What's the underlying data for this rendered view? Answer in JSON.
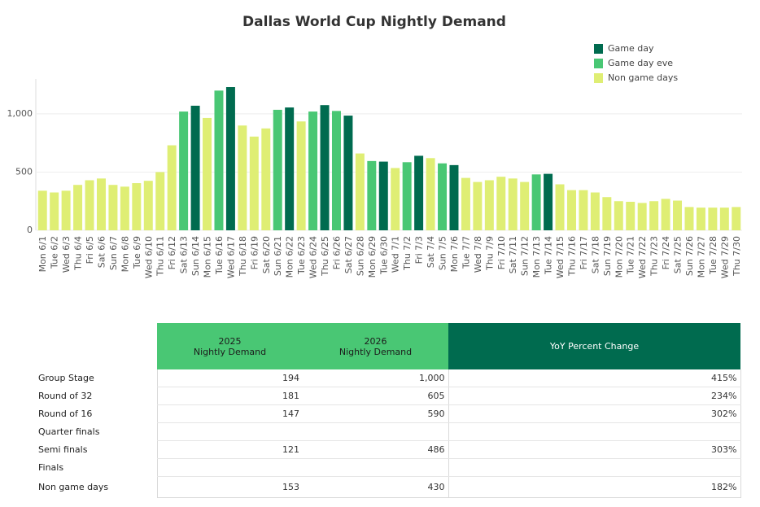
{
  "chart_data": {
    "type": "bar",
    "title": "Dallas World Cup Nightly Demand",
    "categories": [
      "Mon 6/1",
      "Tue 6/2",
      "Wed 6/3",
      "Thu 6/4",
      "Fri 6/5",
      "Sat 6/6",
      "Sun 6/7",
      "Mon 6/8",
      "Tue 6/9",
      "Wed 6/10",
      "Thu 6/11",
      "Fri 6/12",
      "Sat 6/13",
      "Sun 6/14",
      "Mon 6/15",
      "Tue 6/16",
      "Wed 6/17",
      "Thu 6/18",
      "Fri 6/19",
      "Sat 6/20",
      "Sun 6/21",
      "Mon 6/22",
      "Tue 6/23",
      "Wed 6/24",
      "Thu 6/25",
      "Fri 6/26",
      "Sat 6/27",
      "Sun 6/28",
      "Mon 6/29",
      "Tue 6/30",
      "Wed 7/1",
      "Thu 7/2",
      "Fri 7/3",
      "Sat 7/4",
      "Sun 7/5",
      "Mon 7/6",
      "Tue 7/7",
      "Wed 7/8",
      "Thu 7/9",
      "Fri 7/10",
      "Sat 7/11",
      "Sun 7/12",
      "Mon 7/13",
      "Tue 7/14",
      "Wed 7/15",
      "Thu 7/16",
      "Fri 7/17",
      "Sat 7/18",
      "Sun 7/19",
      "Mon 7/20",
      "Tue 7/21",
      "Wed 7/22",
      "Thu 7/23",
      "Fri 7/24",
      "Sat 7/25",
      "Sun 7/26",
      "Mon 7/27",
      "Tue 7/28",
      "Wed 7/29",
      "Thu 7/30"
    ],
    "series": [
      {
        "name": "Game day",
        "color": "#006b4f",
        "values": [
          null,
          null,
          null,
          null,
          null,
          null,
          null,
          null,
          null,
          null,
          null,
          null,
          null,
          1070,
          null,
          null,
          1230,
          null,
          null,
          null,
          null,
          1055,
          null,
          null,
          1075,
          null,
          985,
          null,
          null,
          590,
          null,
          null,
          640,
          null,
          null,
          560,
          null,
          null,
          null,
          null,
          null,
          null,
          null,
          485,
          null,
          null,
          null,
          null,
          null,
          null,
          null,
          null,
          null,
          null,
          null,
          null,
          null,
          null,
          null,
          null
        ]
      },
      {
        "name": "Game day eve",
        "color": "#49c774",
        "values": [
          null,
          null,
          null,
          null,
          null,
          null,
          null,
          null,
          null,
          null,
          null,
          null,
          1020,
          null,
          null,
          1200,
          null,
          null,
          null,
          null,
          1035,
          null,
          null,
          1020,
          null,
          1025,
          null,
          null,
          595,
          null,
          null,
          585,
          null,
          null,
          575,
          null,
          null,
          null,
          null,
          null,
          null,
          null,
          480,
          null,
          null,
          null,
          null,
          null,
          null,
          null,
          null,
          null,
          null,
          null,
          null,
          null,
          null,
          null,
          null,
          null
        ]
      },
      {
        "name": "Non game days",
        "color": "#dfee74",
        "values": [
          340,
          325,
          340,
          390,
          430,
          445,
          390,
          375,
          405,
          425,
          500,
          730,
          null,
          null,
          965,
          null,
          null,
          900,
          805,
          875,
          null,
          null,
          935,
          null,
          null,
          null,
          null,
          660,
          null,
          null,
          535,
          null,
          null,
          620,
          null,
          null,
          450,
          415,
          430,
          460,
          445,
          415,
          null,
          null,
          395,
          345,
          345,
          325,
          285,
          250,
          245,
          235,
          250,
          270,
          255,
          200,
          195,
          195,
          195,
          200
        ]
      }
    ],
    "ylim": [
      0,
      1300
    ],
    "yticks": [
      0,
      500,
      {
        "value": 1000,
        "label": "1,000"
      }
    ],
    "grid": true,
    "legend": "top-right"
  },
  "table": {
    "columns": [
      "2025\nNightly Demand",
      "2026\nNightly Demand",
      "YoY Percent Change"
    ],
    "rows": [
      {
        "label": "Group Stage",
        "cells": [
          "194",
          "1,000",
          "415%"
        ]
      },
      {
        "label": "Round of 32",
        "cells": [
          "181",
          "605",
          "234%"
        ]
      },
      {
        "label": "Round of 16",
        "cells": [
          "147",
          "590",
          "302%"
        ]
      },
      {
        "label": "Quarter finals",
        "cells": [
          null,
          null,
          null
        ]
      },
      {
        "label": "Semi finals",
        "cells": [
          "121",
          "486",
          "303%"
        ]
      },
      {
        "label": "Finals",
        "cells": [
          null,
          null,
          null
        ]
      },
      {
        "label": "Non game days",
        "cells": [
          "153",
          "430",
          "182%"
        ]
      }
    ]
  }
}
